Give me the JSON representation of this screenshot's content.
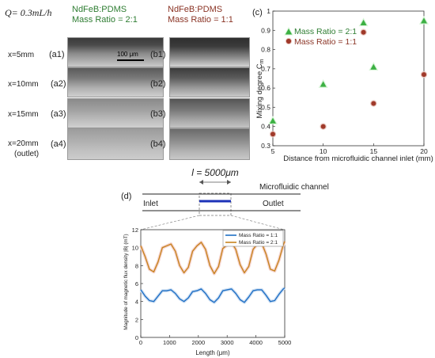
{
  "left_figure": {
    "flow_rate": "Q= 0.3mL/h",
    "col_a_material": "NdFeB:PDMS",
    "col_a_ratio": "Mass Ratio = 2:1",
    "col_b_material": "NdFeB:PDMS",
    "col_b_ratio": "Mass Ratio = 1:1",
    "rows": [
      {
        "x_label": "x=5mm",
        "a": "(a1)",
        "b": "(b1)"
      },
      {
        "x_label": "x=10mm",
        "a": "(a2)",
        "b": "(b2)"
      },
      {
        "x_label": "x=15mm",
        "a": "(a3)",
        "b": "(b3)"
      },
      {
        "x_label": "x=20mm",
        "sub_label": "(outlet)",
        "a": "(a4)",
        "b": "(b4)"
      }
    ],
    "scale_bar": "100 μm"
  },
  "panel_c_label": "(c)",
  "panel_d_label": "(d)",
  "channel_diagram": {
    "length_label": "l = 5000μm",
    "title": "Microfluidic channel",
    "inlet": "Inlet",
    "outlet": "Outlet"
  },
  "colors": {
    "green": "#3cb043",
    "red": "#a0392a",
    "blue": "#1f6fc5",
    "orange": "#c7831f"
  },
  "chart_data": [
    {
      "type": "scatter",
      "xlabel": "Distance from microfluidic channel inlet (mm)",
      "ylabel": "Mixing degree C",
      "ylabel_sub": "m",
      "xlim": [
        5,
        20
      ],
      "ylim": [
        0.3,
        1.0
      ],
      "x_ticks": [
        "5",
        "10",
        "15",
        "20"
      ],
      "y_ticks": [
        "0.3",
        "0.4",
        "0.5",
        "0.6",
        "0.7",
        "0.8",
        "0.9",
        "1"
      ],
      "legend_placement": "top-left",
      "series": [
        {
          "name": "Mass Ratio = 2:1",
          "marker": "triangle",
          "color": "#3cb043",
          "x": [
            5,
            10,
            14,
            15,
            20
          ],
          "y": [
            0.43,
            0.62,
            0.94,
            0.71,
            0.95
          ]
        },
        {
          "name": "Mass Ratio = 1:1",
          "marker": "circle",
          "color": "#a0392a",
          "x": [
            5,
            10,
            14,
            15,
            20
          ],
          "y": [
            0.36,
            0.4,
            0.89,
            0.52,
            0.67
          ]
        }
      ]
    },
    {
      "type": "line",
      "xlabel": "Length (μm)",
      "ylabel": "Magnitude of magnetic flux density |B| (mT)",
      "xlim": [
        0,
        5000
      ],
      "ylim": [
        0,
        12
      ],
      "x_ticks": [
        "0",
        "1000",
        "2000",
        "3000",
        "4000",
        "5000"
      ],
      "y_ticks": [
        "0",
        "2",
        "4",
        "6",
        "8",
        "10",
        "12"
      ],
      "legend_placement": "top-right",
      "series": [
        {
          "name": "Mass Ratio = 1:1",
          "color": "#1f6fc5",
          "x": [
            0,
            150,
            300,
            450,
            600,
            750,
            900,
            1050,
            1200,
            1350,
            1500,
            1650,
            1800,
            1950,
            2100,
            2250,
            2400,
            2550,
            2700,
            2850,
            3000,
            3150,
            3300,
            3450,
            3600,
            3750,
            3900,
            4050,
            4200,
            4350,
            4500,
            4650,
            4800,
            4950,
            5000
          ],
          "y": [
            5.3,
            4.6,
            4.1,
            4.0,
            4.6,
            5.2,
            5.2,
            5.3,
            4.9,
            4.3,
            4.0,
            4.4,
            5.1,
            5.2,
            5.4,
            4.9,
            4.2,
            3.9,
            4.4,
            5.2,
            5.3,
            5.4,
            4.9,
            4.2,
            3.9,
            4.5,
            5.2,
            5.3,
            5.3,
            4.7,
            4.0,
            4.1,
            4.8,
            5.4,
            5.5
          ]
        },
        {
          "name": "Mass Ratio = 2:1",
          "color": "#c7831f",
          "x": [
            0,
            150,
            300,
            450,
            600,
            750,
            900,
            1050,
            1200,
            1350,
            1500,
            1650,
            1800,
            1950,
            2100,
            2250,
            2400,
            2550,
            2700,
            2850,
            3000,
            3150,
            3300,
            3450,
            3600,
            3750,
            3900,
            4050,
            4200,
            4350,
            4500,
            4650,
            4800,
            4950,
            5000
          ],
          "y": [
            10.2,
            9.0,
            7.6,
            7.3,
            8.4,
            10.0,
            10.2,
            10.4,
            9.6,
            8.0,
            7.2,
            7.8,
            9.6,
            10.2,
            10.6,
            9.8,
            8.0,
            7.1,
            7.9,
            9.9,
            10.3,
            10.6,
            9.8,
            8.1,
            7.2,
            7.9,
            9.8,
            10.4,
            10.5,
            9.3,
            7.6,
            7.4,
            8.6,
            10.3,
            10.7
          ]
        }
      ]
    }
  ]
}
